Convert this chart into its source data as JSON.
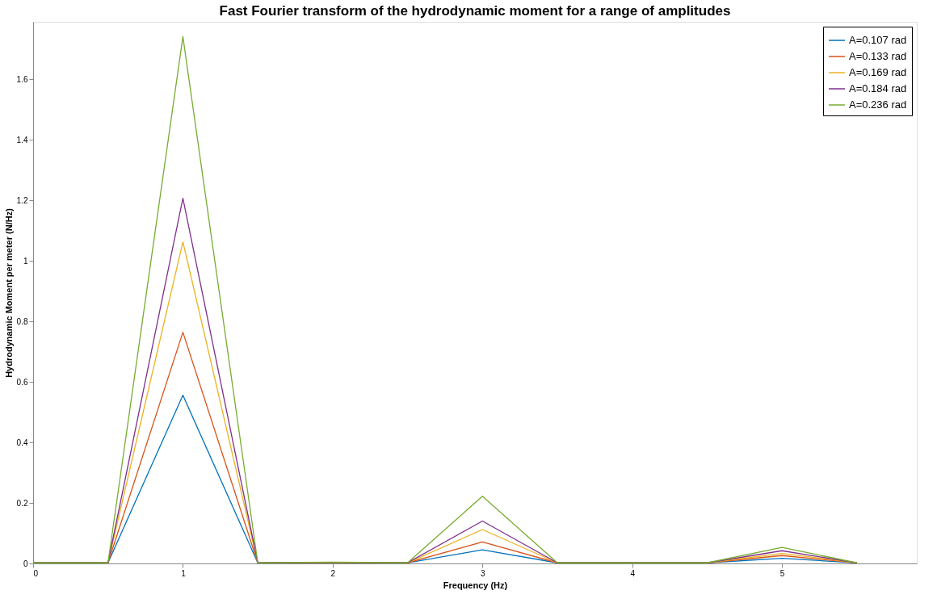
{
  "chart_data": {
    "type": "line",
    "title": "Fast Fourier transform of the hydrodynamic moment for a range of amplitudes",
    "xlabel": "Frequency (Hz)",
    "ylabel": "Hydrodynamic Moment per meter (N/Hz)",
    "x": [
      0,
      0.5,
      1,
      1.5,
      2,
      2.5,
      3,
      3.5,
      4,
      4.5,
      5,
      5.5
    ],
    "series": [
      {
        "name": "A=0.107 rad",
        "color": "#0072bd",
        "values": [
          0.002,
          0.002,
          0.556,
          0.002,
          0.002,
          0.002,
          0.045,
          0.002,
          0.002,
          0.002,
          0.017,
          0.002
        ]
      },
      {
        "name": "A=0.133 rad",
        "color": "#d95319",
        "values": [
          0.002,
          0.002,
          0.764,
          0.002,
          0.002,
          0.002,
          0.071,
          0.002,
          0.002,
          0.002,
          0.026,
          0.002
        ]
      },
      {
        "name": "A=0.169 rad",
        "color": "#edb120",
        "values": [
          0.002,
          0.002,
          1.063,
          0.002,
          0.003,
          0.002,
          0.112,
          0.002,
          0.002,
          0.002,
          0.033,
          0.002
        ]
      },
      {
        "name": "A=0.184 rad",
        "color": "#7e2f8e",
        "values": [
          0.002,
          0.002,
          1.207,
          0.002,
          0.003,
          0.002,
          0.14,
          0.002,
          0.002,
          0.002,
          0.042,
          0.002
        ]
      },
      {
        "name": "A=0.236 rad",
        "color": "#77ac30",
        "values": [
          0.002,
          0.002,
          1.741,
          0.002,
          0.004,
          0.002,
          0.222,
          0.002,
          0.002,
          0.002,
          0.053,
          0.002
        ]
      }
    ],
    "xlim": [
      0,
      5.9
    ],
    "xticks": [
      0,
      1,
      2,
      3,
      4,
      5
    ],
    "ylim": [
      0,
      1.79
    ],
    "yticks": [
      0,
      0.2,
      0.4,
      0.6,
      0.8,
      1,
      1.2,
      1.4,
      1.6
    ],
    "grid": false,
    "legend": "top right",
    "marker": "none",
    "line_style": "solid"
  }
}
